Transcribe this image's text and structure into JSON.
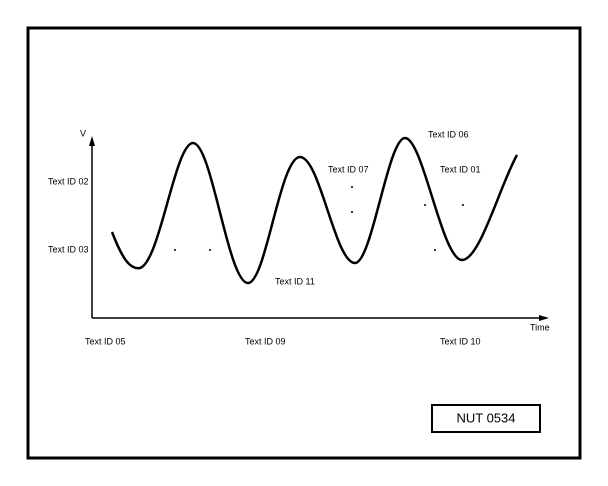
{
  "axes": {
    "y_label": "V",
    "x_label": "Time"
  },
  "labels": [
    "Text ID 06",
    "Text ID 07",
    "Text ID 01",
    "Text ID 02",
    "Text ID 03",
    "Text ID 11",
    "Text ID 05",
    "Text ID 09",
    "Text ID 10"
  ],
  "figure_id": "NUT 0534"
}
